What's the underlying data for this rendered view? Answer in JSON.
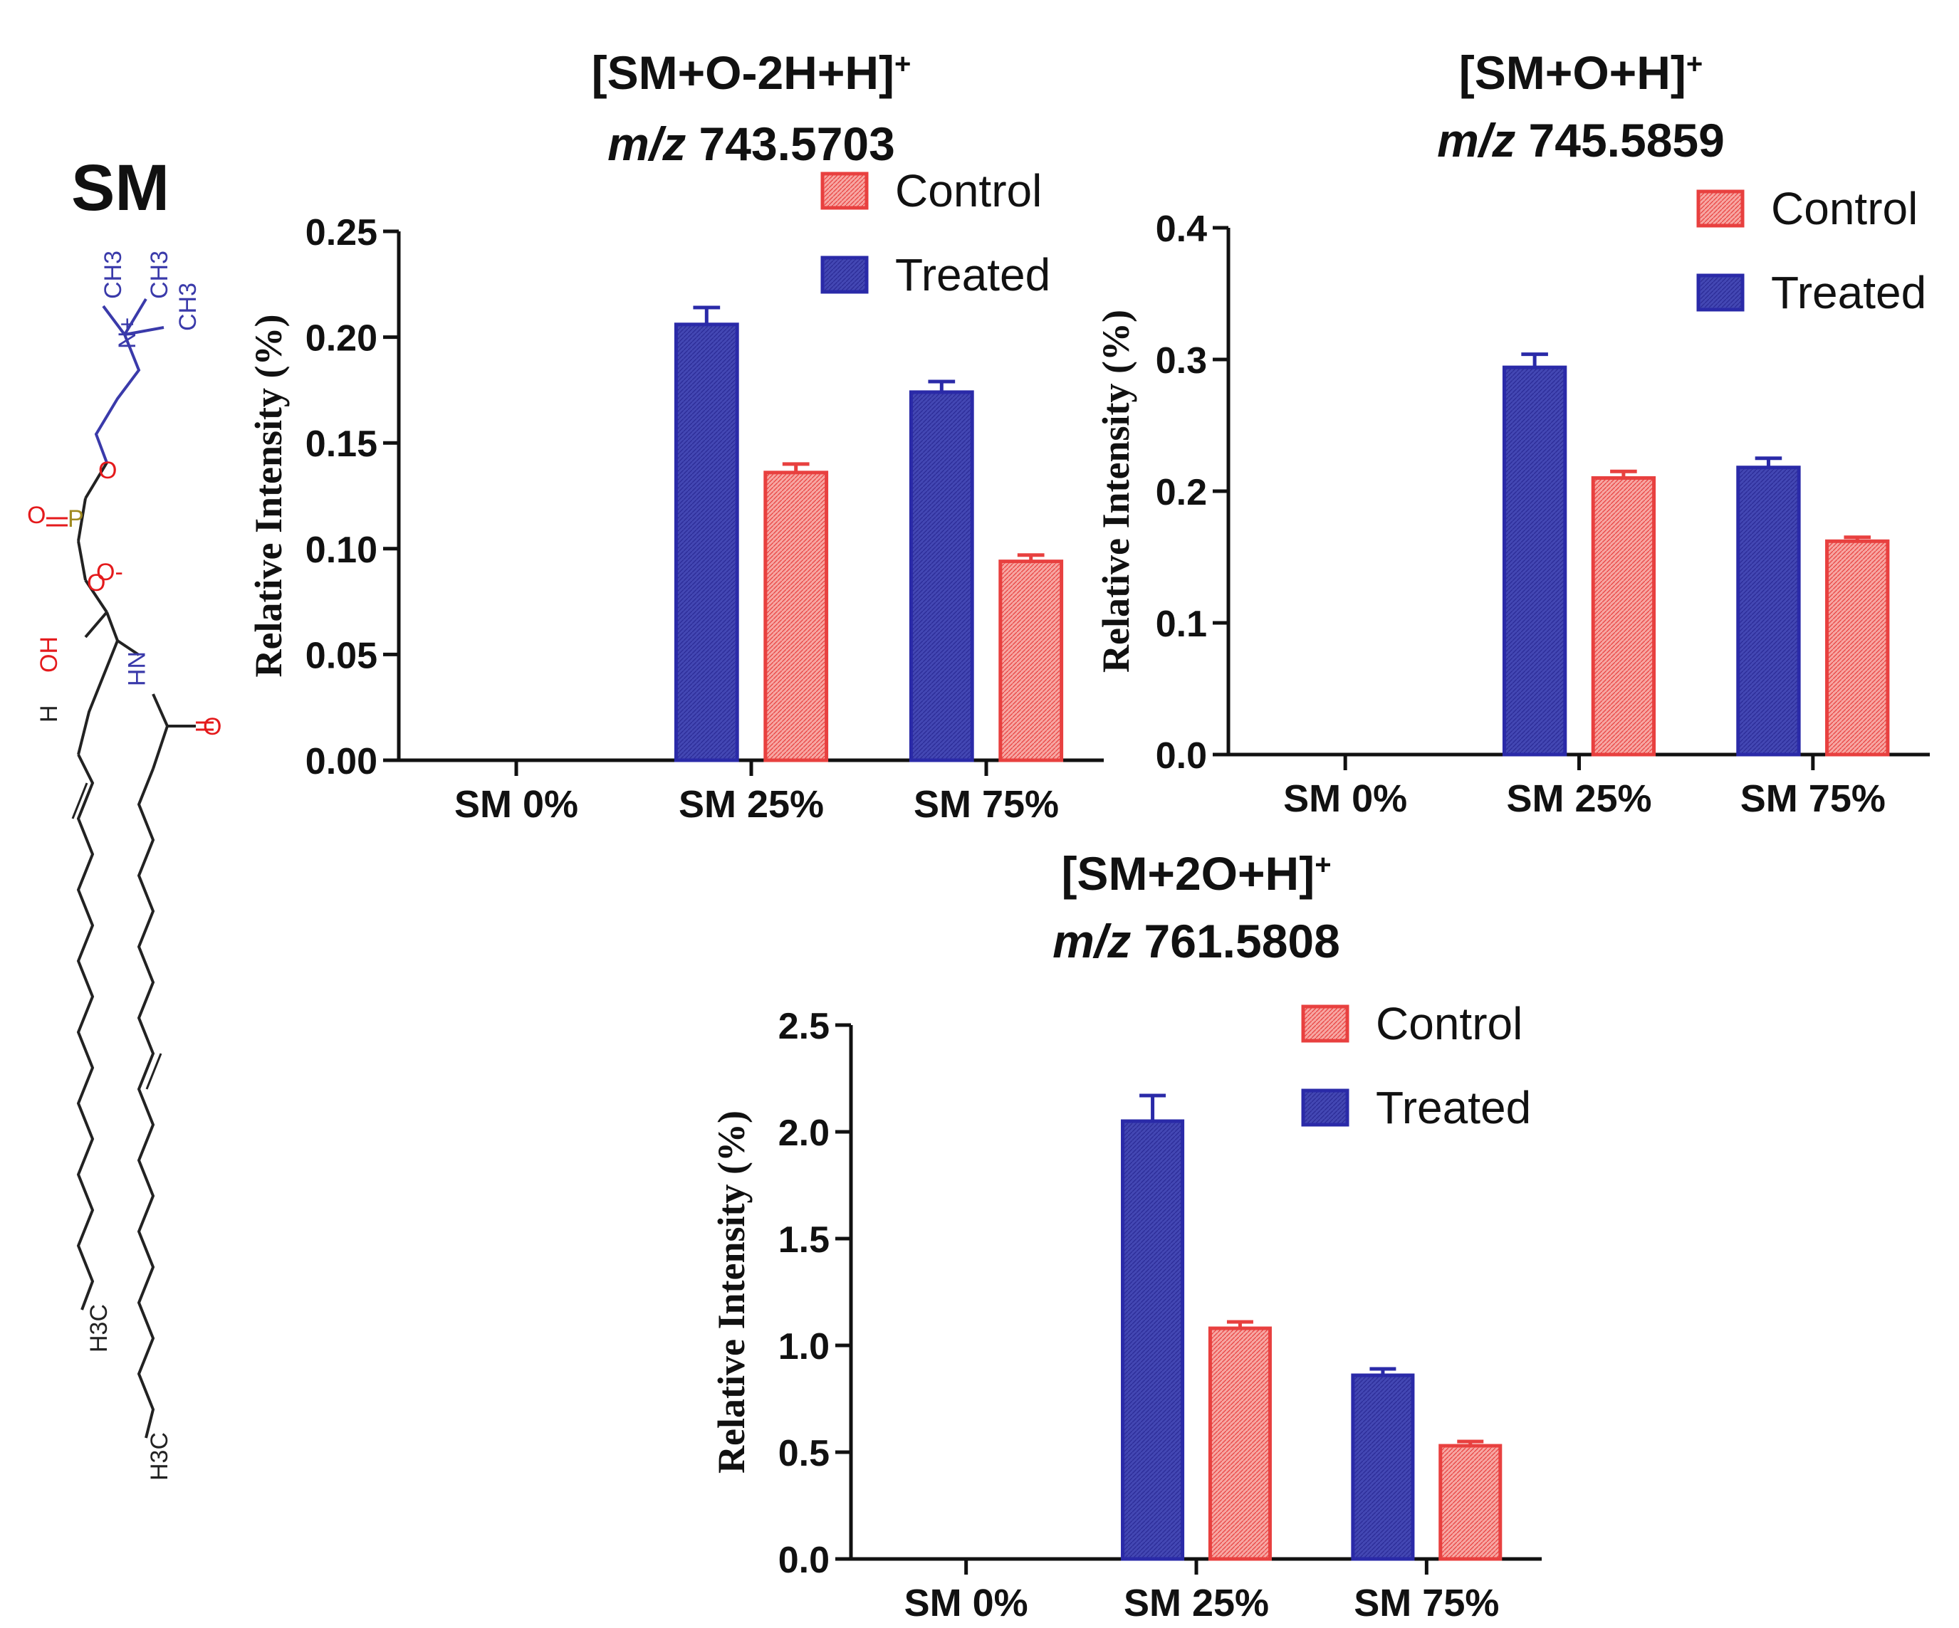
{
  "structure": {
    "label": "SM",
    "atom_labels": [
      "CH3",
      "CH3",
      "CH3",
      "N+",
      "O",
      "O",
      "P",
      "O-",
      "O",
      "OH",
      "H",
      "NH",
      "O",
      "H3C",
      "H3C"
    ],
    "colors": {
      "bond": "#222222",
      "nitrogen": "#3a3aaa",
      "oxygen": "#e41a1c",
      "phosphorus": "#a08a20"
    }
  },
  "legend": {
    "control": "Control",
    "treated": "Treated"
  },
  "colors": {
    "control": "#e8403f",
    "control_fill": "#f59a96",
    "treated": "#2a2aa8",
    "treated_fill": "#4e52b8",
    "axis": "#111111"
  },
  "chart_data": [
    {
      "type": "bar",
      "title_line1": "[SM+O-2H+H]",
      "title_sup": "+",
      "title_mz_italic": "m/z",
      "title_mz_value": "743.5703",
      "ylabel": "Relative Intensity (%)",
      "xlabel": "",
      "categories": [
        "SM 0%",
        "SM 25%",
        "SM 75%"
      ],
      "ylim": [
        0,
        0.25
      ],
      "yticks": [
        0,
        0.05,
        0.1,
        0.15,
        0.2,
        0.25
      ],
      "ytick_labels": [
        "0.00",
        "0.05",
        "0.10",
        "0.15",
        "0.20",
        "0.25"
      ],
      "series": [
        {
          "name": "Treated",
          "values": [
            0,
            0.206,
            0.174
          ],
          "errors": [
            0,
            0.008,
            0.005
          ]
        },
        {
          "name": "Control",
          "values": [
            0,
            0.136,
            0.094
          ],
          "errors": [
            0,
            0.004,
            0.003
          ]
        }
      ],
      "legend_position": "top-right"
    },
    {
      "type": "bar",
      "title_line1": "[SM+O+H]",
      "title_sup": "+",
      "title_mz_italic": "m/z",
      "title_mz_value": "745.5859",
      "ylabel": "Relative Intensity (%)",
      "xlabel": "",
      "categories": [
        "SM 0%",
        "SM 25%",
        "SM 75%"
      ],
      "ylim": [
        0,
        0.4
      ],
      "yticks": [
        0,
        0.1,
        0.2,
        0.3,
        0.4
      ],
      "ytick_labels": [
        "0.0",
        "0.1",
        "0.2",
        "0.3",
        "0.4"
      ],
      "series": [
        {
          "name": "Treated",
          "values": [
            0,
            0.294,
            0.218
          ],
          "errors": [
            0,
            0.01,
            0.007
          ]
        },
        {
          "name": "Control",
          "values": [
            0,
            0.21,
            0.162
          ],
          "errors": [
            0,
            0.005,
            0.003
          ]
        }
      ],
      "legend_position": "top-right"
    },
    {
      "type": "bar",
      "title_line1": "[SM+2O+H]",
      "title_sup": "+",
      "title_mz_italic": "m/z",
      "title_mz_value": "761.5808",
      "ylabel": "Relative Intensity (%)",
      "xlabel": "",
      "categories": [
        "SM 0%",
        "SM 25%",
        "SM 75%"
      ],
      "ylim": [
        0,
        2.5
      ],
      "yticks": [
        0,
        0.5,
        1.0,
        1.5,
        2.0,
        2.5
      ],
      "ytick_labels": [
        "0.0",
        "0.5",
        "1.0",
        "1.5",
        "2.0",
        "2.5"
      ],
      "series": [
        {
          "name": "Treated",
          "values": [
            0,
            2.05,
            0.86
          ],
          "errors": [
            0,
            0.12,
            0.03
          ]
        },
        {
          "name": "Control",
          "values": [
            0,
            1.08,
            0.53
          ],
          "errors": [
            0,
            0.03,
            0.02
          ]
        }
      ],
      "legend_position": "top-right"
    }
  ]
}
